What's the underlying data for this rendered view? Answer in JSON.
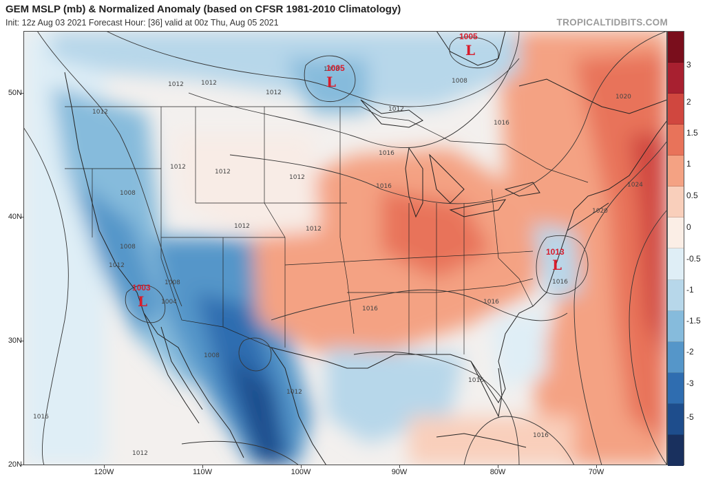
{
  "header": {
    "title": "GEM MSLP (mb) & Normalized Anomaly (based on CFSR 1981-2010 Climatology)",
    "subtitle": "Init: 12z Aug 03 2021   Forecast Hour: [36]   valid at 00z Thu, Aug 05 2021",
    "brand": "TROPICALTIDBITS.COM"
  },
  "axes": {
    "lat_labels": [
      "50N",
      "40N",
      "30N",
      "20N"
    ],
    "lon_labels": [
      "120W",
      "110W",
      "100W",
      "90W",
      "80W",
      "70W"
    ]
  },
  "colorbar": {
    "labels": [
      "3",
      "2",
      "1.5",
      "1",
      "0.5",
      "0",
      "-0.5",
      "-1",
      "-1.5",
      "-2",
      "-3",
      "-5"
    ],
    "colors": [
      "#7a0e1c",
      "#a82030",
      "#d0473f",
      "#e8735a",
      "#f4a283",
      "#f9cfbb",
      "#fbeee6",
      "#dfeef6",
      "#b7d7ea",
      "#86bbdc",
      "#5596c9",
      "#2f6db0",
      "#1e4d8c",
      "#19305e"
    ]
  },
  "lows": [
    {
      "label": "L",
      "value": "1005"
    },
    {
      "label": "L",
      "value": "1005"
    },
    {
      "label": "L",
      "value": "1013"
    },
    {
      "label": "L",
      "value": "1003"
    }
  ],
  "isobar_labels": [
    "1012",
    "1012",
    "1012",
    "1012",
    "1008",
    "1008",
    "1012",
    "1012",
    "1012",
    "1016",
    "1012",
    "1012",
    "1008",
    "1012",
    "1008",
    "1012",
    "1004",
    "1008",
    "1012",
    "1016",
    "1016",
    "1016",
    "1016",
    "1020",
    "1024",
    "1020",
    "1016",
    "1016",
    "1016",
    "1012",
    "1016",
    "1008"
  ]
}
